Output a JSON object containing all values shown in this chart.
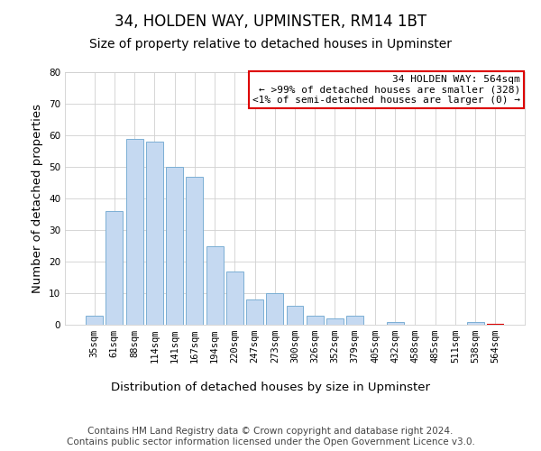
{
  "title": "34, HOLDEN WAY, UPMINSTER, RM14 1BT",
  "subtitle": "Size of property relative to detached houses in Upminster",
  "xlabel": "Distribution of detached houses by size in Upminster",
  "ylabel": "Number of detached properties",
  "categories": [
    "35sqm",
    "61sqm",
    "88sqm",
    "114sqm",
    "141sqm",
    "167sqm",
    "194sqm",
    "220sqm",
    "247sqm",
    "273sqm",
    "300sqm",
    "326sqm",
    "352sqm",
    "379sqm",
    "405sqm",
    "432sqm",
    "458sqm",
    "485sqm",
    "511sqm",
    "538sqm",
    "564sqm"
  ],
  "values": [
    3,
    36,
    59,
    58,
    50,
    47,
    25,
    17,
    8,
    10,
    6,
    3,
    2,
    3,
    0,
    1,
    0,
    0,
    0,
    1,
    0
  ],
  "bar_color": "#c5d9f1",
  "bar_edge_color": "#7bafd4",
  "highlight_bar_index": 20,
  "ylim": [
    0,
    80
  ],
  "yticks": [
    0,
    10,
    20,
    30,
    40,
    50,
    60,
    70,
    80
  ],
  "annotation_box_text": [
    "34 HOLDEN WAY: 564sqm",
    "← >99% of detached houses are smaller (328)",
    "<1% of semi-detached houses are larger (0) →"
  ],
  "annotation_box_color": "#dd0000",
  "footer_line1": "Contains HM Land Registry data © Crown copyright and database right 2024.",
  "footer_line2": "Contains public sector information licensed under the Open Government Licence v3.0.",
  "background_color": "#ffffff",
  "grid_color": "#d0d0d0",
  "title_fontsize": 12,
  "subtitle_fontsize": 10,
  "axis_label_fontsize": 9.5,
  "tick_fontsize": 7.5,
  "footer_fontsize": 7.5
}
